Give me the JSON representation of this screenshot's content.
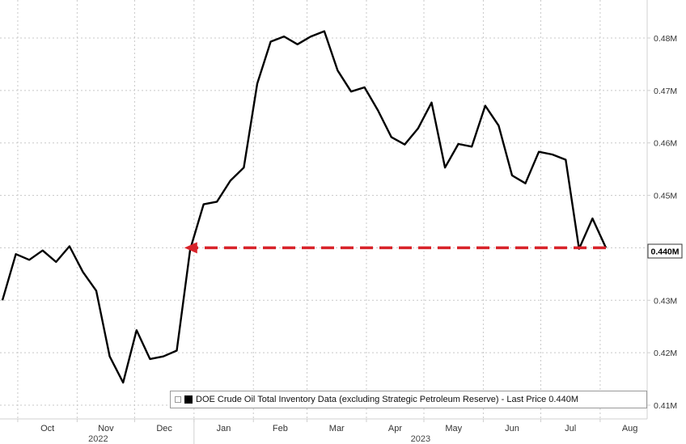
{
  "chart_data": {
    "type": "line",
    "series": [
      {
        "name": "DOE Crude Oil Total Inventory Data (excluding Strategic Petroleum Reserve)",
        "unit": "M",
        "x": [
          "2022-09-23",
          "2022-09-30",
          "2022-10-07",
          "2022-10-14",
          "2022-10-21",
          "2022-10-28",
          "2022-11-04",
          "2022-11-11",
          "2022-11-18",
          "2022-11-25",
          "2022-12-02",
          "2022-12-09",
          "2022-12-16",
          "2022-12-23",
          "2022-12-30",
          "2023-01-06",
          "2023-01-13",
          "2023-01-20",
          "2023-01-27",
          "2023-02-03",
          "2023-02-10",
          "2023-02-17",
          "2023-02-24",
          "2023-03-03",
          "2023-03-10",
          "2023-03-17",
          "2023-03-24",
          "2023-03-31",
          "2023-04-07",
          "2023-04-14",
          "2023-04-21",
          "2023-04-28",
          "2023-05-05",
          "2023-05-12",
          "2023-05-19",
          "2023-05-26",
          "2023-06-02",
          "2023-06-09",
          "2023-06-16",
          "2023-06-23",
          "2023-06-30",
          "2023-07-07",
          "2023-07-14",
          "2023-07-21",
          "2023-07-28",
          "2023-08-04"
        ],
        "values": [
          0.43,
          0.4388,
          0.4377,
          0.4395,
          0.4373,
          0.4403,
          0.4354,
          0.4318,
          0.4193,
          0.4143,
          0.4243,
          0.4188,
          0.4193,
          0.4204,
          0.4397,
          0.4483,
          0.4488,
          0.4528,
          0.4553,
          0.4713,
          0.4793,
          0.4803,
          0.4788,
          0.4803,
          0.4813,
          0.4738,
          0.4698,
          0.4706,
          0.4662,
          0.4611,
          0.4597,
          0.4628,
          0.4677,
          0.4553,
          0.4598,
          0.4593,
          0.4671,
          0.4633,
          0.4538,
          0.4523,
          0.4583,
          0.4578,
          0.4568,
          0.4398,
          0.4456,
          0.44
        ]
      }
    ],
    "x_ticks": [
      "Oct",
      "Nov",
      "Dec",
      "Jan",
      "Feb",
      "Mar",
      "Apr",
      "May",
      "Jun",
      "Jul",
      "Aug"
    ],
    "year_labels": [
      "2022",
      "2023"
    ],
    "y_ticks": [
      "0.41M",
      "0.42M",
      "0.43M",
      "0.44M",
      "0.45M",
      "0.46M",
      "0.47M",
      "0.48M"
    ],
    "ylim": [
      0.4075,
      0.487
    ],
    "last_price_label": "0.440M",
    "legend_text": "DOE Crude Oil Total Inventory Data (excluding Strategic Petroleum Reserve) - Last Price 0.440M",
    "reference_line": {
      "value": 0.44,
      "from": "2023-01-01",
      "to": "2023-08-04",
      "style": "dashed arrow",
      "color": "#d8232a"
    },
    "grid": true,
    "legend_position": "bottom",
    "colors": {
      "series": "#000000",
      "arrow": "#d8232a"
    }
  }
}
